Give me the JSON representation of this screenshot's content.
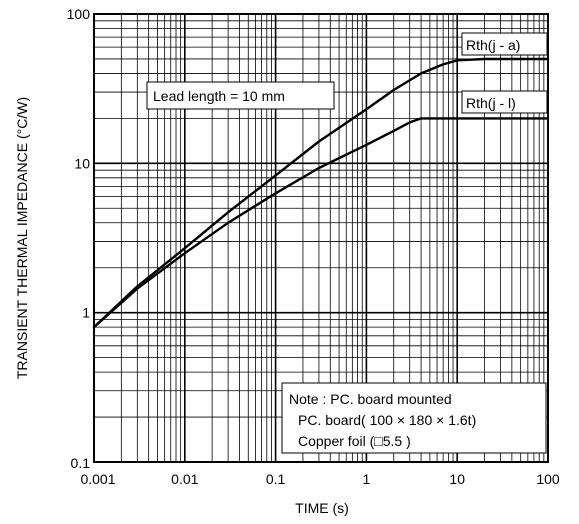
{
  "chart_data": {
    "type": "line",
    "title": "",
    "xlabel": "TIME (s)",
    "ylabel": "TRANSIENT THERMAL IMPEDANCE (°C/W)",
    "xscale": "log",
    "yscale": "log",
    "xlim": [
      0.001,
      100
    ],
    "ylim": [
      0.1,
      100
    ],
    "x_tick_labels": [
      "0.001",
      "0.01",
      "0.1",
      "1",
      "10",
      "100"
    ],
    "y_tick_labels": [
      "0.1",
      "1",
      "10",
      "100"
    ],
    "grid": true,
    "series": [
      {
        "name": "Rth(j - a)",
        "x": [
          0.001,
          0.003,
          0.01,
          0.03,
          0.1,
          0.3,
          1,
          2,
          4,
          7,
          10,
          20,
          50,
          100
        ],
        "y": [
          0.8,
          1.5,
          2.7,
          4.7,
          8.3,
          14,
          23,
          31,
          40,
          46,
          49,
          50,
          50,
          50
        ]
      },
      {
        "name": "Rth(j - l)",
        "x": [
          0.001,
          0.003,
          0.01,
          0.03,
          0.1,
          0.3,
          1,
          2,
          3,
          4,
          10,
          100
        ],
        "y": [
          0.8,
          1.45,
          2.5,
          4.0,
          6.3,
          9.3,
          13.3,
          16.5,
          18.8,
          20,
          20,
          20
        ]
      }
    ],
    "annotations": {
      "lead_length": "Lead length = 10 mm",
      "note_line1": "Note : PC. board mounted",
      "note_line2": "PC. board( 100 × 180 × 1.6t)",
      "note_line3": "Copper foil (□5.5 )"
    }
  }
}
